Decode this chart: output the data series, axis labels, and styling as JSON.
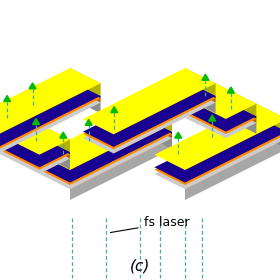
{
  "title": "(c)",
  "label_text": "fs laser",
  "bg_color": "#ffffff",
  "yellow": "#ffff00",
  "orange": "#ff8800",
  "blue_dark": "#1a0090",
  "gray_light": "#cccccc",
  "gray_side": "#aaaaaa",
  "gray_front": "#bbbbbb",
  "green_arrow": "#00bb00",
  "teal_dashed": "#44aaaa",
  "font_size_label": 9,
  "font_size_title": 11
}
